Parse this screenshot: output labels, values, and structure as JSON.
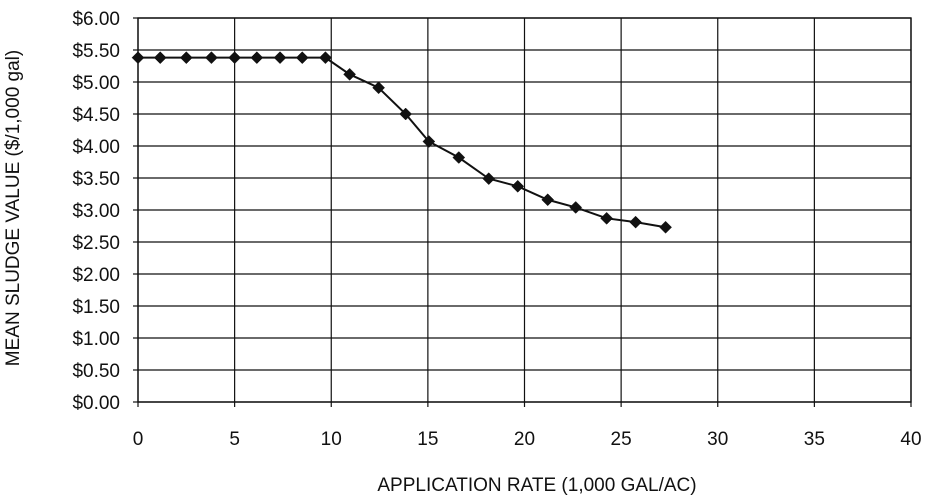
{
  "chart_data": {
    "type": "line",
    "title": "",
    "xlabel": "APPLICATION RATE (1,000 GAL/AC)",
    "ylabel": "MEAN SLUDGE VALUE ($/1,000 gal)",
    "xlim": [
      0,
      40
    ],
    "ylim": [
      0,
      6
    ],
    "x_ticks": [
      0,
      5,
      10,
      15,
      20,
      25,
      30,
      35,
      40
    ],
    "x_tick_labels": [
      "0",
      "5",
      "10",
      "15",
      "20",
      "25",
      "30",
      "35",
      "40"
    ],
    "y_ticks": [
      0,
      0.5,
      1,
      1.5,
      2,
      2.5,
      3,
      3.5,
      4,
      4.5,
      5,
      5.5,
      6
    ],
    "y_tick_labels": [
      "$0.00",
      "$0.50",
      "$1.00",
      "$1.50",
      "$2.00",
      "$2.50",
      "$3.00",
      "$3.50",
      "$4.00",
      "$4.50",
      "$5.00",
      "$5.50",
      "$6.00"
    ],
    "grid": true,
    "legend": "none",
    "marker": "diamond",
    "colors": {
      "line": "#111111",
      "grid": "#111111",
      "background": "#ffffff"
    },
    "series": [
      {
        "x": [
          0,
          1.15,
          2.5,
          3.8,
          5,
          6.15,
          7.35,
          8.5,
          9.7,
          10.95,
          12.45,
          13.85,
          15.05,
          16.6,
          18.15,
          19.65,
          21.2,
          22.65,
          24.25,
          25.75,
          27.3
        ],
        "values": [
          5.38,
          5.38,
          5.38,
          5.38,
          5.38,
          5.38,
          5.38,
          5.38,
          5.38,
          5.12,
          4.91,
          4.5,
          4.07,
          3.82,
          3.49,
          3.37,
          3.16,
          3.04,
          2.87,
          2.81,
          2.73
        ]
      }
    ]
  }
}
